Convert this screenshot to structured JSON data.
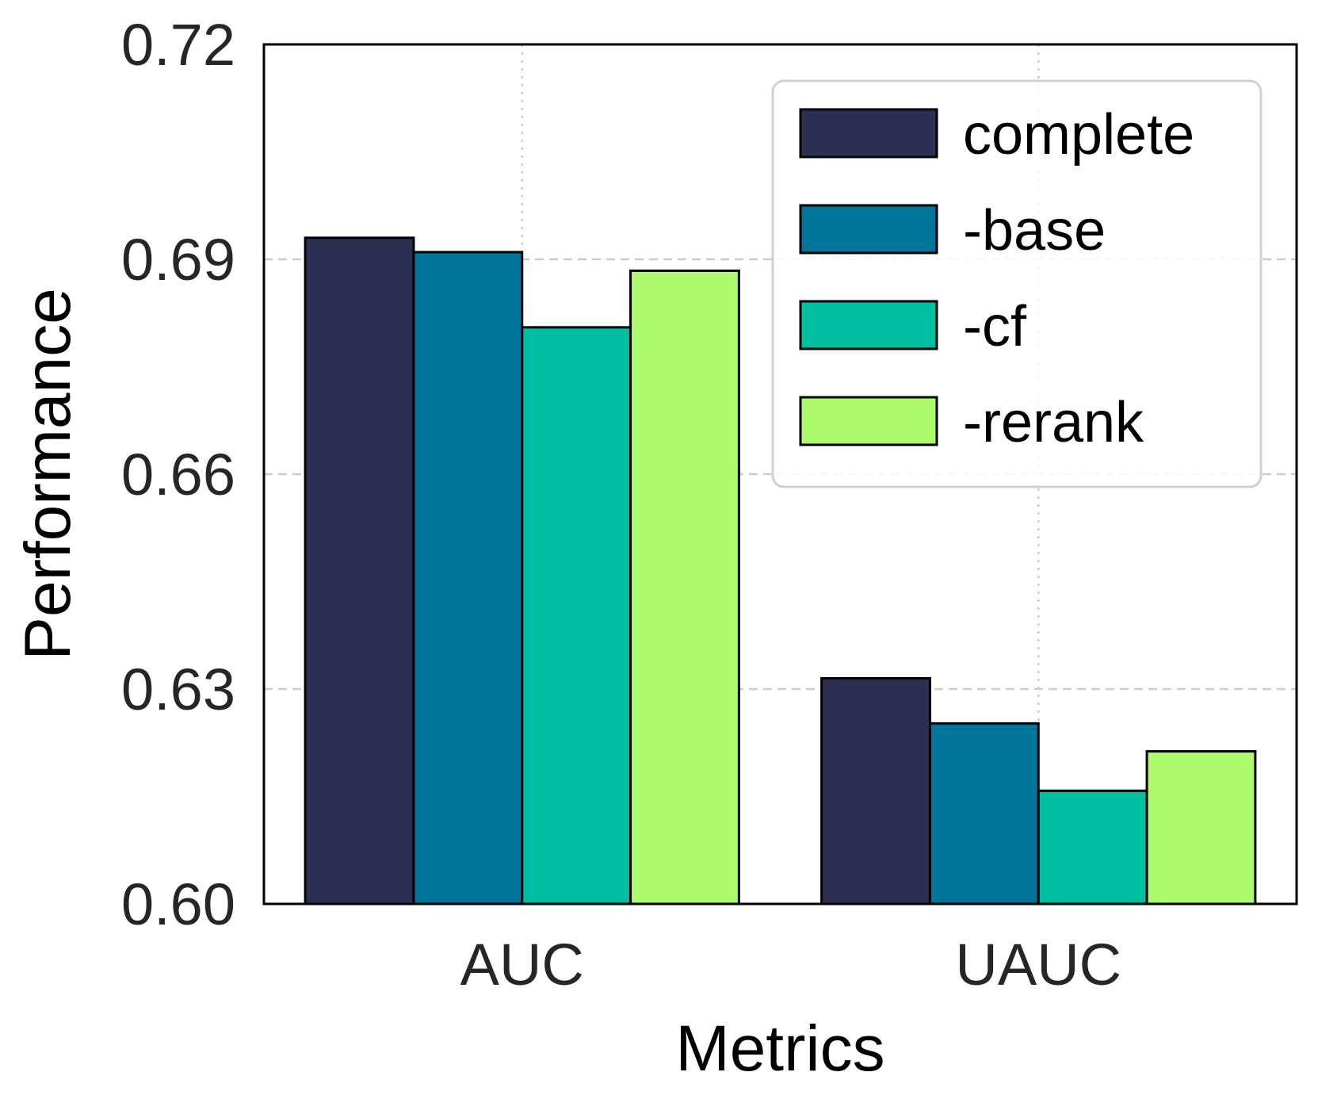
{
  "chart_data": {
    "type": "bar",
    "title": "",
    "xlabel": "Metrics",
    "ylabel": "Performance",
    "categories": [
      "AUC",
      "UAUC"
    ],
    "series": [
      {
        "name": "complete",
        "color": "#2b2f54",
        "values": [
          0.693,
          0.6315
        ]
      },
      {
        "name": "-base",
        "color": "#007599",
        "values": [
          0.691,
          0.6252
        ]
      },
      {
        "name": "-cf",
        "color": "#00bfa0",
        "values": [
          0.6805,
          0.6158
        ]
      },
      {
        "name": "-rerank",
        "color": "#adfa6c",
        "values": [
          0.6884,
          0.6213
        ]
      }
    ],
    "ylim": [
      0.6,
      0.72
    ],
    "yticks": [
      "0.60",
      "0.63",
      "0.66",
      "0.69",
      "0.72"
    ],
    "grid": true,
    "legend_position": "top-right"
  }
}
